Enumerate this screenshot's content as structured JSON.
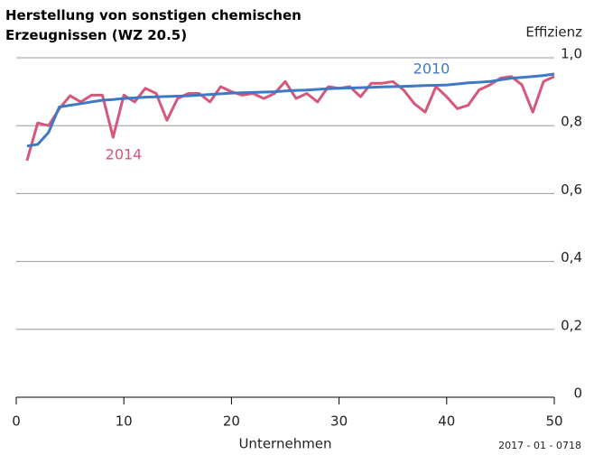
{
  "chart_data": {
    "type": "line",
    "title": "Herstellung von sonstigen chemischen Erzeugnissen (WZ 20.5)",
    "y_label": "Effizienz",
    "x_label": "Unternehmen",
    "source": "2017 - 01 - 0718",
    "x": [
      1,
      2,
      3,
      4,
      5,
      6,
      7,
      8,
      9,
      10,
      11,
      12,
      13,
      14,
      15,
      16,
      17,
      18,
      19,
      20,
      21,
      22,
      23,
      24,
      25,
      26,
      27,
      28,
      29,
      30,
      31,
      32,
      33,
      34,
      35,
      36,
      37,
      38,
      39,
      40,
      41,
      42,
      43,
      44,
      45,
      46,
      47,
      48,
      49,
      50
    ],
    "series": [
      {
        "name": "2014",
        "color": "#d6577a",
        "values": [
          0.697,
          0.808,
          0.8,
          0.85,
          0.888,
          0.87,
          0.89,
          0.89,
          0.766,
          0.89,
          0.87,
          0.91,
          0.895,
          0.816,
          0.88,
          0.895,
          0.895,
          0.87,
          0.915,
          0.9,
          0.89,
          0.895,
          0.88,
          0.895,
          0.93,
          0.88,
          0.895,
          0.87,
          0.915,
          0.91,
          0.915,
          0.885,
          0.925,
          0.925,
          0.93,
          0.905,
          0.865,
          0.84,
          0.915,
          0.885,
          0.85,
          0.86,
          0.905,
          0.92,
          0.94,
          0.945,
          0.92,
          0.84,
          0.93,
          0.945
        ]
      },
      {
        "name": "2010",
        "color": "#3d79c4",
        "values": [
          0.74,
          0.745,
          0.78,
          0.855,
          0.86,
          0.865,
          0.87,
          0.875,
          0.877,
          0.88,
          0.882,
          0.884,
          0.885,
          0.886,
          0.887,
          0.888,
          0.89,
          0.892,
          0.894,
          0.896,
          0.897,
          0.898,
          0.899,
          0.9,
          0.902,
          0.904,
          0.905,
          0.907,
          0.909,
          0.91,
          0.911,
          0.912,
          0.913,
          0.914,
          0.915,
          0.916,
          0.917,
          0.918,
          0.919,
          0.92,
          0.923,
          0.926,
          0.928,
          0.93,
          0.935,
          0.94,
          0.942,
          0.945,
          0.948,
          0.952
        ]
      }
    ],
    "xlim": [
      0,
      50
    ],
    "xticks": [
      0,
      10,
      20,
      30,
      40,
      50
    ],
    "ylim": [
      0,
      1.0
    ],
    "yticks": [
      0,
      {
        "value": 0.2,
        "label": "0,2"
      },
      {
        "value": 0.4,
        "label": "0,4"
      },
      {
        "value": 0.6,
        "label": "0,6"
      },
      {
        "value": 0.8,
        "label": "0,8"
      },
      {
        "value": 1.0,
        "label": "1,0"
      }
    ],
    "grid": true
  }
}
